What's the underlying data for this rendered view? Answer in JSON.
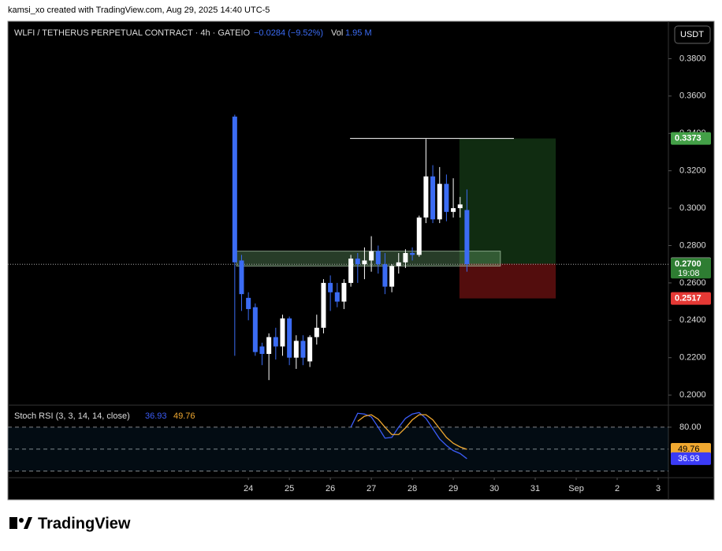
{
  "header": {
    "credit": "kamsi_xo created with TradingView.com, Aug 29, 2025 14:40 UTC-5",
    "currency": "USDT",
    "footer": "TradingView"
  },
  "chart_data": {
    "type": "candlestick",
    "title": "WLFI / TETHERUS PERPETUAL CONTRACT · 4h · GATEIO",
    "change": "−0.0284 (−9.52%)",
    "volume_label": "Vol",
    "volume": "1.95 M",
    "up_color": "#ffffff",
    "down_color": "#3b6cf4",
    "x": [
      23.667,
      23.833,
      24,
      24.167,
      24.333,
      24.5,
      24.667,
      24.833,
      25,
      25.167,
      25.333,
      25.5,
      25.667,
      25.833,
      26,
      26.167,
      26.333,
      26.5,
      26.667,
      26.833,
      27,
      27.167,
      27.333,
      27.5,
      27.667,
      27.833,
      28,
      28.167,
      28.333,
      28.5,
      28.667,
      28.833,
      29,
      29.167,
      29.333
    ],
    "open": [
      0.349,
      0.272,
      0.252,
      0.247,
      0.226,
      0.222,
      0.231,
      0.226,
      0.241,
      0.22,
      0.229,
      0.218,
      0.231,
      0.236,
      0.26,
      0.255,
      0.25,
      0.26,
      0.273,
      0.27,
      0.272,
      0.277,
      0.27,
      0.258,
      0.269,
      0.271,
      0.276,
      0.275,
      0.295,
      0.317,
      0.294,
      0.313,
      0.298,
      0.3,
      0.299
    ],
    "high": [
      0.35,
      0.275,
      0.255,
      0.249,
      0.228,
      0.233,
      0.236,
      0.243,
      0.242,
      0.232,
      0.232,
      0.232,
      0.243,
      0.262,
      0.264,
      0.26,
      0.262,
      0.275,
      0.276,
      0.279,
      0.285,
      0.28,
      0.276,
      0.27,
      0.276,
      0.278,
      0.279,
      0.296,
      0.337,
      0.323,
      0.322,
      0.318,
      0.316,
      0.306,
      0.31
    ],
    "low": [
      0.221,
      0.245,
      0.24,
      0.221,
      0.216,
      0.208,
      0.219,
      0.221,
      0.216,
      0.214,
      0.216,
      0.215,
      0.227,
      0.233,
      0.245,
      0.247,
      0.246,
      0.258,
      0.26,
      0.262,
      0.266,
      0.265,
      0.254,
      0.255,
      0.265,
      0.268,
      0.272,
      0.274,
      0.292,
      0.292,
      0.292,
      0.293,
      0.295,
      0.295,
      0.266
    ],
    "close": [
      0.271,
      0.254,
      0.246,
      0.223,
      0.222,
      0.231,
      0.226,
      0.241,
      0.22,
      0.229,
      0.22,
      0.231,
      0.236,
      0.26,
      0.255,
      0.25,
      0.26,
      0.273,
      0.27,
      0.272,
      0.277,
      0.27,
      0.258,
      0.269,
      0.271,
      0.276,
      0.275,
      0.295,
      0.317,
      0.294,
      0.313,
      0.298,
      0.3,
      0.302,
      0.27
    ],
    "xlim": [
      18.13,
      34.25
    ],
    "xticks": [
      24,
      25,
      26,
      27,
      28,
      29,
      30,
      31,
      {
        "value": 32,
        "label": "Sep"
      },
      {
        "value": 33,
        "label": "2"
      },
      {
        "value": 34,
        "label": "3"
      }
    ],
    "ylim": [
      0.195,
      0.4
    ],
    "yticks": [
      {
        "value": 0.2,
        "label": "0.2000"
      },
      {
        "value": 0.22,
        "label": "0.2200"
      },
      {
        "value": 0.24,
        "label": "0.2400"
      },
      {
        "value": 0.26,
        "label": "0.2600"
      },
      {
        "value": 0.28,
        "label": "0.2800"
      },
      {
        "value": 0.3,
        "label": "0.3000"
      },
      {
        "value": 0.32,
        "label": "0.3200"
      },
      {
        "value": 0.34,
        "label": "0.3400"
      },
      {
        "value": 0.36,
        "label": "0.3600"
      },
      {
        "value": 0.38,
        "label": "0.3800"
      }
    ],
    "zone": {
      "x": [
        23.71,
        30.15
      ],
      "y": [
        0.269,
        0.277
      ]
    },
    "resistance": {
      "x": [
        26.48,
        30.48
      ],
      "y": 0.3373
    },
    "position": {
      "x": [
        29.15,
        31.5
      ],
      "target": 0.3373,
      "entry": 0.2703,
      "stop": 0.2517
    },
    "last_price": {
      "value": 0.27,
      "label": "0.2700"
    },
    "countdown": "19:08",
    "indicator": {
      "type": "line",
      "title": "Stoch RSI (3, 3, 14, 14, close)",
      "ylim": [
        11,
        109
      ],
      "yticks": [
        {
          "value": 80,
          "label": "80.00"
        }
      ],
      "bands": [
        80,
        50,
        20
      ],
      "series": [
        {
          "name": "K",
          "color": "#3b5cf6",
          "values": [
            null,
            null,
            null,
            null,
            null,
            null,
            null,
            null,
            null,
            null,
            null,
            null,
            null,
            null,
            null,
            null,
            null,
            80,
            99,
            98,
            94,
            80,
            65,
            66,
            80,
            92,
            98,
            100,
            92,
            78,
            64,
            55,
            48,
            44,
            36.93
          ]
        },
        {
          "name": "D",
          "color": "#f0a830",
          "values": [
            null,
            null,
            null,
            null,
            null,
            null,
            null,
            null,
            null,
            null,
            null,
            null,
            null,
            null,
            null,
            null,
            null,
            null,
            88,
            95,
            97,
            91,
            80,
            70,
            70,
            79,
            90,
            97,
            97,
            90,
            78,
            66,
            58,
            53,
            49.76
          ]
        }
      ]
    }
  }
}
